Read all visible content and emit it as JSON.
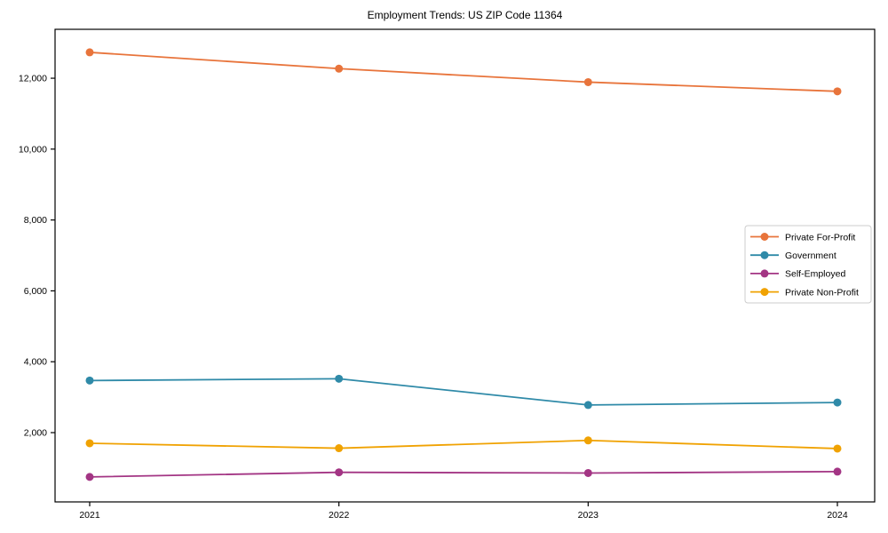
{
  "figure": {
    "title": "Employment Trends: US ZIP Code 11364"
  },
  "chart_data": {
    "type": "line",
    "title": "Employment Trends: US ZIP Code 11364",
    "xlabel": "",
    "ylabel": "",
    "x": [
      2021,
      2022,
      2023,
      2024
    ],
    "x_tick_labels": [
      "2021",
      "2022",
      "2023",
      "2024"
    ],
    "series": [
      {
        "name": "Private For-Profit",
        "color": "#e8743b",
        "values": [
          12730,
          12270,
          11890,
          11630
        ]
      },
      {
        "name": "Government",
        "color": "#2f8aa8",
        "values": [
          3470,
          3520,
          2780,
          2850
        ]
      },
      {
        "name": "Self-Employed",
        "color": "#a33584",
        "values": [
          750,
          880,
          860,
          900
        ]
      },
      {
        "name": "Private Non-Profit",
        "color": "#f0a202",
        "values": [
          1700,
          1560,
          1780,
          1550
        ]
      }
    ],
    "ylim": [
      45,
      13380
    ],
    "yticks": [
      2000,
      4000,
      6000,
      8000,
      10000,
      12000
    ],
    "ytick_labels": [
      "2,000",
      "4,000",
      "6,000",
      "8,000",
      "10,000",
      "12,000"
    ],
    "grid": false,
    "marker": "circle",
    "legend": {
      "position": "right-center",
      "entries": [
        "Private For-Profit",
        "Government",
        "Self-Employed",
        "Private Non-Profit"
      ]
    },
    "axis_color": "#000000",
    "legend_border_color": "#cccccc",
    "legend_background": "#ffffff"
  }
}
